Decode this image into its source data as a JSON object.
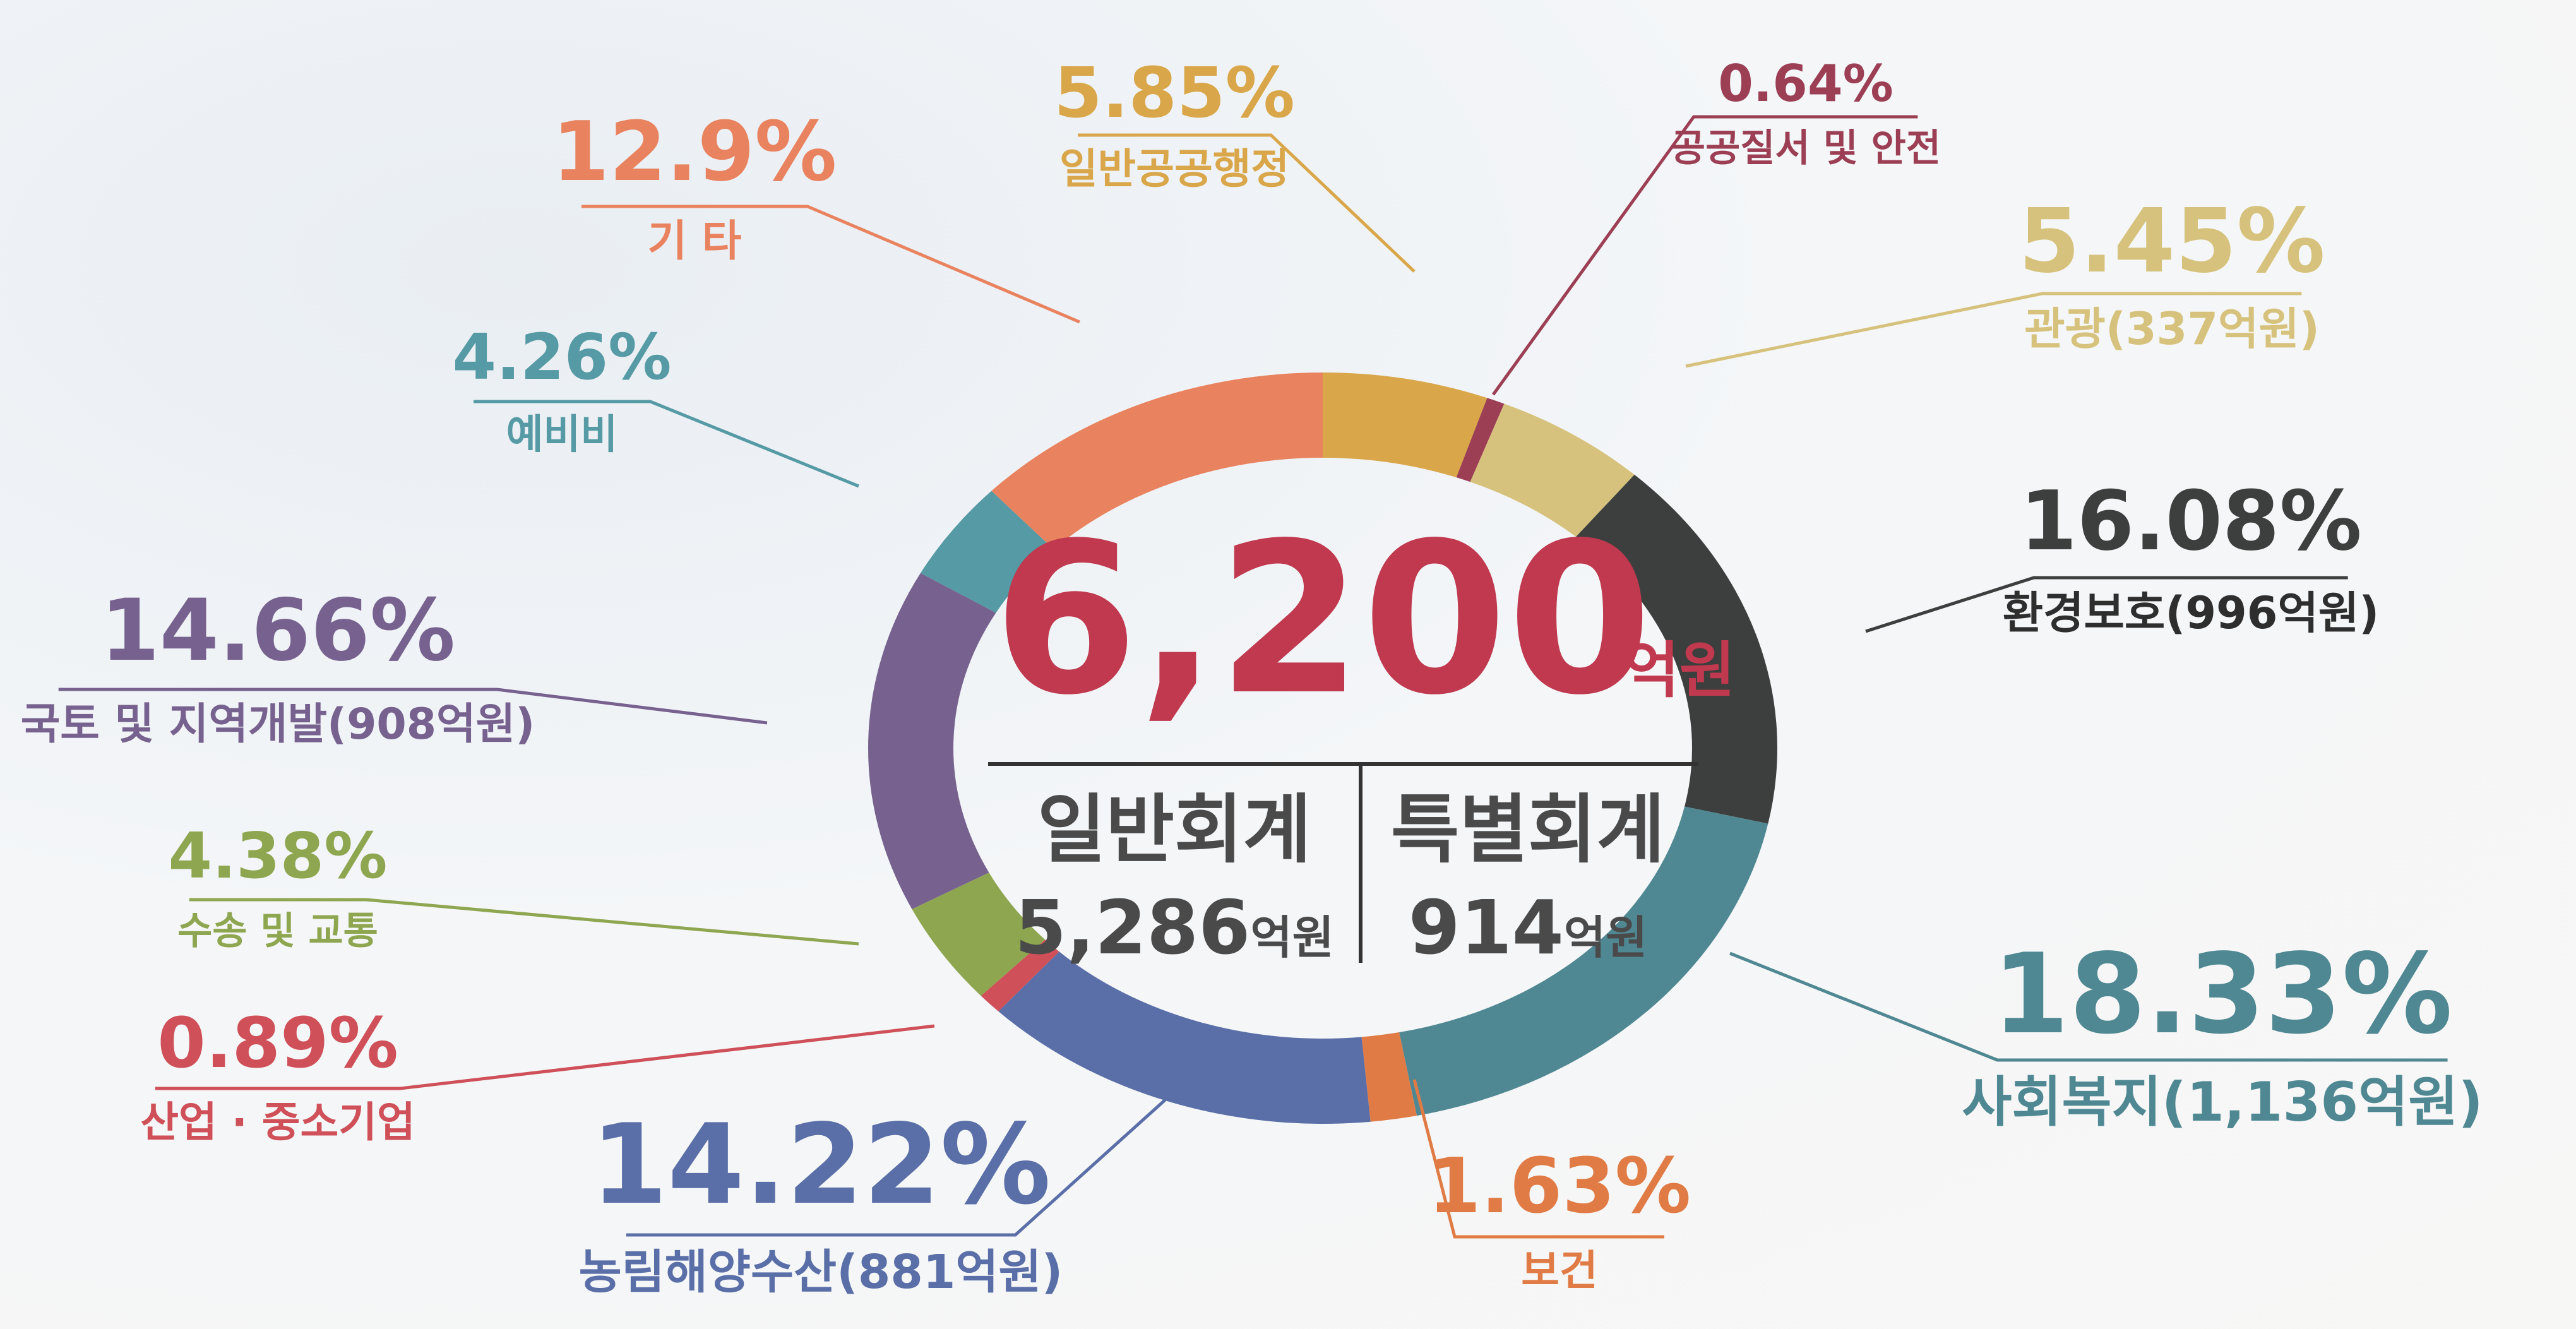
{
  "chart_data": {
    "type": "pie",
    "donut": true,
    "total": {
      "value": "6,200",
      "unit": "억원"
    },
    "accounts": [
      {
        "label": "일반회계",
        "value": "5,286",
        "unit": "억원"
      },
      {
        "label": "특별회계",
        "value": "914",
        "unit": "억원"
      }
    ],
    "segments": [
      {
        "label": "일반공공행정",
        "percent": "5.85%",
        "value": 5.85,
        "color": "#d9a64a"
      },
      {
        "label": "공공질서 및 안전",
        "percent": "0.64%",
        "value": 0.64,
        "color": "#9c3f55"
      },
      {
        "label": "관광(337억원)",
        "percent": "5.45%",
        "value": 5.45,
        "color": "#d6c27c"
      },
      {
        "label": "환경보호(996억원)",
        "percent": "16.08%",
        "value": 16.08,
        "color": "#3c3f3d"
      },
      {
        "label": "사회복지(1,136억원)",
        "percent": "18.33%",
        "value": 18.33,
        "color": "#4f8893"
      },
      {
        "label": "보건",
        "percent": "1.63%",
        "value": 1.63,
        "color": "#e07b45"
      },
      {
        "label": "농림해양수산(881억원)",
        "percent": "14.22%",
        "value": 14.22,
        "color": "#5a6fa8"
      },
      {
        "label": "산업 · 중소기업",
        "percent": "0.89%",
        "value": 0.89,
        "color": "#cf5058"
      },
      {
        "label": "수송 및 교통",
        "percent": "4.38%",
        "value": 4.38,
        "color": "#8ea650"
      },
      {
        "label": "국토 및 지역개발(908억원)",
        "percent": "14.66%",
        "value": 14.66,
        "color": "#77628f"
      },
      {
        "label": "예비비",
        "percent": "4.26%",
        "value": 4.26,
        "color": "#559aa4"
      },
      {
        "label": "기 타",
        "percent": "12.9%",
        "value": 12.9,
        "color": "#e9835f"
      }
    ]
  }
}
